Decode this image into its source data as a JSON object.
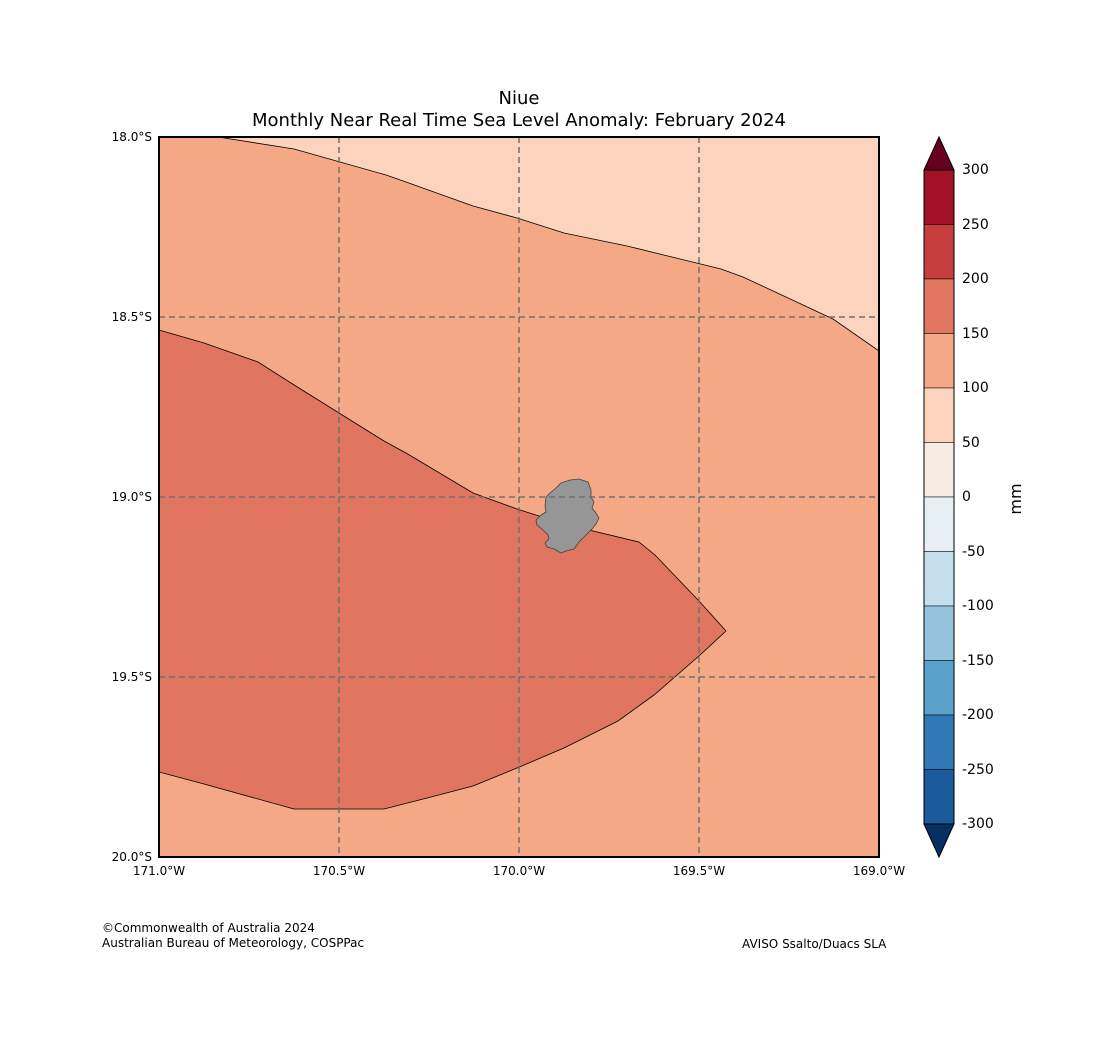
{
  "map": {
    "title": "Niue",
    "subtitle": "Monthly Near Real Time Sea Level Anomaly: February 2024",
    "lat_ticks": [
      "18.0°S",
      "18.5°S",
      "19.0°S",
      "19.5°S",
      "20.0°S"
    ],
    "lon_ticks": [
      "171.0°W",
      "170.5°W",
      "170.0°W",
      "169.5°W",
      "169.0°W"
    ],
    "extent": {
      "lon_min": -171.0,
      "lon_max": -169.0,
      "lat_min": -20.0,
      "lat_max": -18.0
    },
    "gridlines": true,
    "land_color": "#969696",
    "contour_colors": {
      "50_100": "#fcd3bc",
      "100_150": "#f5a886",
      "150_200": "#e07660"
    }
  },
  "colorbar": {
    "unit": "mm",
    "ticks": [
      "300",
      "250",
      "200",
      "150",
      "100",
      "50",
      "0",
      "-50",
      "-100",
      "-150",
      "-200",
      "-250",
      "-300"
    ],
    "over_color": "#67001f",
    "under_color": "#053061",
    "bin_colors": [
      "#a11228",
      "#c53e3d",
      "#e07660",
      "#f5a886",
      "#fcd3bc",
      "#f7ece4",
      "#e6f0f4",
      "#c5dfec",
      "#94c4de",
      "#5aa2cc",
      "#3079b6",
      "#1b5a9b"
    ]
  },
  "footer": {
    "credit_line1": "©Commonwealth of Australia 2024",
    "credit_line2": "Australian Bureau of Meteorology, COSPPac",
    "source": "AVISO Ssalto/Duacs SLA"
  }
}
